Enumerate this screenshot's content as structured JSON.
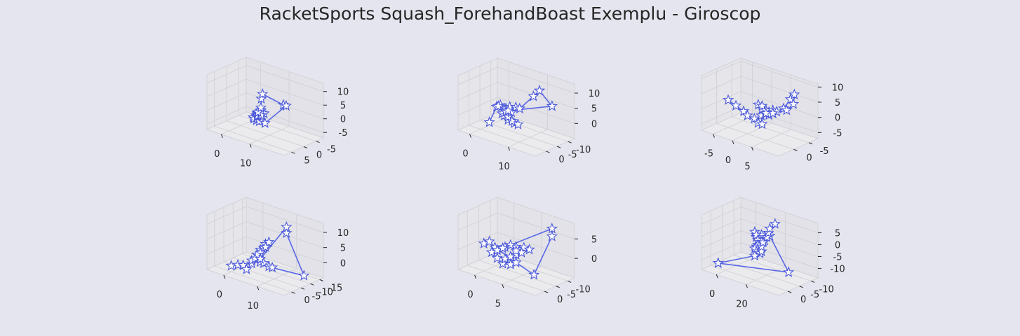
{
  "title": "RacketSports Squash_ForehandBoast Exemplu - Giroscop",
  "colors": {
    "background": "#e5e5ef",
    "pane_left": "#e6e6ea",
    "pane_right": "#e2e2e8",
    "pane_floor": "#ebebee",
    "grid": "#d2d2d8",
    "line": "#5967e6",
    "marker_fill": "#ffffff",
    "marker_edge": "#4a57d9",
    "text": "#262626"
  },
  "chart_data": [
    {
      "type": "line3d",
      "marker": "star",
      "xticks": [
        0,
        10
      ],
      "yticks": [
        5,
        0,
        -5
      ],
      "zticks": [
        10,
        5,
        0,
        -5
      ],
      "xlim": [
        -5,
        22
      ],
      "ylim": [
        -8,
        8
      ],
      "zlim": [
        -7,
        13
      ],
      "points": [
        [
          0,
          -5,
          -6
        ],
        [
          1,
          -5,
          -5
        ],
        [
          2,
          -4,
          -6
        ],
        [
          3,
          -4,
          -6
        ],
        [
          2,
          -3,
          -5
        ],
        [
          3,
          -3,
          -4
        ],
        [
          4,
          -2,
          -3
        ],
        [
          4,
          -2,
          -2
        ],
        [
          5,
          -1,
          -2
        ],
        [
          5,
          -1,
          -1
        ],
        [
          6,
          -1,
          0
        ],
        [
          6,
          0,
          0
        ],
        [
          7,
          0,
          1
        ],
        [
          7,
          0,
          0
        ],
        [
          8,
          1,
          1
        ],
        [
          8,
          1,
          0
        ],
        [
          9,
          1,
          1
        ],
        [
          8,
          1,
          0
        ],
        [
          7,
          0,
          1
        ],
        [
          6,
          0,
          0
        ],
        [
          7,
          0,
          2
        ],
        [
          8,
          1,
          6
        ],
        [
          11,
          4,
          10
        ],
        [
          20,
          6,
          10
        ],
        [
          21,
          6,
          10
        ],
        [
          5,
          -4,
          -6
        ]
      ]
    },
    {
      "type": "line3d",
      "marker": "star",
      "xticks": [
        0,
        10
      ],
      "yticks": [
        0,
        -5,
        -10
      ],
      "zticks": [
        10,
        5,
        0
      ],
      "xlim": [
        -3,
        17
      ],
      "ylim": [
        -13,
        5
      ],
      "zlim": [
        -5,
        13
      ],
      "points": [
        [
          0,
          -4,
          -4
        ],
        [
          3,
          -2,
          3
        ],
        [
          4,
          -2,
          4
        ],
        [
          5,
          -2,
          3
        ],
        [
          4,
          -1,
          4
        ],
        [
          6,
          -1,
          4
        ],
        [
          7,
          -1,
          5
        ],
        [
          6,
          -1,
          3
        ],
        [
          5,
          -1,
          2
        ],
        [
          5,
          -2,
          1
        ],
        [
          6,
          -2,
          0
        ],
        [
          7,
          -3,
          -1
        ],
        [
          8,
          -3,
          -1
        ],
        [
          7,
          -2,
          0
        ],
        [
          6,
          -2,
          1
        ],
        [
          6,
          -1,
          3
        ],
        [
          7,
          -1,
          4
        ],
        [
          8,
          0,
          4
        ],
        [
          7,
          -1,
          5
        ],
        [
          8,
          -2,
          5
        ],
        [
          9,
          -2,
          5
        ],
        [
          12,
          -3,
          10
        ],
        [
          13,
          -4,
          12
        ],
        [
          14,
          -8,
          6
        ],
        [
          6,
          -2,
          3
        ]
      ]
    },
    {
      "type": "line3d",
      "marker": "star",
      "xticks": [
        -5,
        0,
        5
      ],
      "yticks": [
        0,
        -5
      ],
      "zticks": [
        10,
        5,
        0,
        -5
      ],
      "xlim": [
        -8,
        12
      ],
      "ylim": [
        -8,
        5
      ],
      "zlim": [
        -7,
        11
      ],
      "points": [
        [
          -5,
          0,
          2
        ],
        [
          -3,
          0,
          1
        ],
        [
          -1,
          0,
          0
        ],
        [
          0,
          0,
          -1
        ],
        [
          1,
          -1,
          -2
        ],
        [
          2,
          -1,
          -3
        ],
        [
          3,
          -1,
          -3
        ],
        [
          2,
          -2,
          -1
        ],
        [
          3,
          -2,
          0
        ],
        [
          4,
          -2,
          1
        ],
        [
          3,
          -1,
          2
        ],
        [
          2,
          -1,
          3
        ],
        [
          3,
          -1,
          3
        ],
        [
          4,
          -1,
          2
        ],
        [
          5,
          -2,
          2
        ],
        [
          4,
          -2,
          0
        ],
        [
          5,
          -2,
          1
        ],
        [
          6,
          -2,
          2
        ],
        [
          7,
          -3,
          3
        ],
        [
          8,
          -4,
          6
        ],
        [
          9,
          -4,
          8
        ],
        [
          8,
          -5,
          4
        ],
        [
          7,
          -4,
          2
        ],
        [
          5,
          -2,
          1
        ],
        [
          4,
          -1,
          1
        ]
      ]
    },
    {
      "type": "line3d",
      "marker": "star",
      "xticks": [
        0,
        10
      ],
      "yticks": [
        0,
        -5,
        -10,
        -15
      ],
      "zticks": [
        10,
        5,
        0
      ],
      "xlim": [
        -5,
        18
      ],
      "ylim": [
        -17,
        4
      ],
      "zlim": [
        -5,
        13
      ],
      "points": [
        [
          0,
          0,
          -3
        ],
        [
          2,
          0,
          -2
        ],
        [
          3,
          -1,
          -2
        ],
        [
          4,
          -1,
          -3
        ],
        [
          5,
          -2,
          -1
        ],
        [
          5,
          -2,
          0
        ],
        [
          6,
          -2,
          1
        ],
        [
          6,
          -3,
          2
        ],
        [
          7,
          -3,
          3
        ],
        [
          7,
          -3,
          4
        ],
        [
          8,
          -3,
          5
        ],
        [
          8,
          -4,
          6
        ],
        [
          9,
          -4,
          7
        ],
        [
          8,
          -4,
          5
        ],
        [
          7,
          -3,
          3
        ],
        [
          6,
          -3,
          2
        ],
        [
          6,
          -2,
          1
        ],
        [
          7,
          -3,
          0
        ],
        [
          8,
          -3,
          0
        ],
        [
          9,
          -4,
          -1
        ],
        [
          10,
          -4,
          -1
        ],
        [
          15,
          -12,
          -4
        ],
        [
          12,
          -8,
          10
        ],
        [
          12,
          -8,
          12
        ],
        [
          7,
          -3,
          1
        ]
      ]
    },
    {
      "type": "line3d",
      "marker": "star",
      "xticks": [
        0,
        5
      ],
      "yticks": [
        0,
        -5,
        -10
      ],
      "zticks": [
        5,
        0
      ],
      "xlim": [
        -3,
        11
      ],
      "ylim": [
        -13,
        4
      ],
      "zlim": [
        -5,
        9
      ],
      "points": [
        [
          0,
          0,
          2
        ],
        [
          1,
          0,
          3
        ],
        [
          2,
          0,
          2
        ],
        [
          2,
          -1,
          1
        ],
        [
          1,
          -1,
          0
        ],
        [
          2,
          -1,
          -1
        ],
        [
          3,
          -1,
          -2
        ],
        [
          4,
          -2,
          -2
        ],
        [
          3,
          -2,
          -1
        ],
        [
          4,
          -2,
          0
        ],
        [
          5,
          -2,
          1
        ],
        [
          5,
          -2,
          3
        ],
        [
          6,
          -3,
          3
        ],
        [
          7,
          -3,
          3
        ],
        [
          6,
          -2,
          2
        ],
        [
          5,
          -2,
          2
        ],
        [
          4,
          -2,
          3
        ],
        [
          3,
          -2,
          2
        ],
        [
          2,
          -1,
          1
        ],
        [
          4,
          -2,
          0
        ],
        [
          5,
          -2,
          -1
        ],
        [
          7,
          -5,
          -4
        ],
        [
          9,
          -8,
          6
        ],
        [
          9,
          -8,
          8
        ],
        [
          3,
          -1,
          2
        ]
      ]
    },
    {
      "type": "line3d",
      "marker": "star",
      "xticks": [
        0,
        20
      ],
      "yticks": [
        0,
        -5,
        -10
      ],
      "zticks": [
        5,
        0,
        -5,
        -10
      ],
      "xlim": [
        -10,
        42
      ],
      "ylim": [
        -13,
        4
      ],
      "zlim": [
        -14,
        9
      ],
      "points": [
        [
          -5,
          0,
          -12
        ],
        [
          30,
          -8,
          -12
        ],
        [
          22,
          -5,
          3
        ],
        [
          20,
          -4,
          1
        ],
        [
          18,
          -4,
          3
        ],
        [
          16,
          -3,
          2
        ],
        [
          15,
          -3,
          4
        ],
        [
          16,
          -3,
          3
        ],
        [
          17,
          -3,
          1
        ],
        [
          18,
          -4,
          0
        ],
        [
          17,
          -3,
          -1
        ],
        [
          16,
          -3,
          -2
        ],
        [
          15,
          -3,
          -3
        ],
        [
          16,
          -3,
          -4
        ],
        [
          17,
          -4,
          -5
        ],
        [
          18,
          -4,
          -4
        ],
        [
          18,
          -4,
          -2
        ],
        [
          19,
          -4,
          0
        ],
        [
          20,
          -5,
          2
        ],
        [
          21,
          -5,
          4
        ],
        [
          22,
          -5,
          6
        ],
        [
          24,
          -6,
          8
        ],
        [
          15,
          -3,
          -6
        ],
        [
          -5,
          0,
          -12
        ]
      ]
    }
  ]
}
